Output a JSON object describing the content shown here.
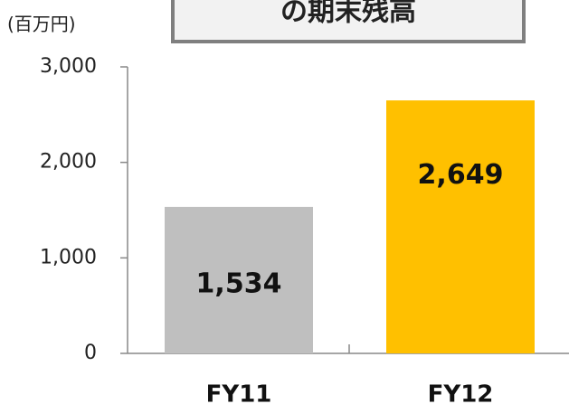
{
  "chart_data": {
    "type": "bar",
    "title": "の期末残高",
    "y_axis_label": "(百万円)",
    "categories": [
      "FY11",
      "FY12"
    ],
    "values": [
      1534,
      2649
    ],
    "value_labels": [
      "1,534",
      "2,649"
    ],
    "colors": [
      "#bfbfbf",
      "#ffc000"
    ],
    "ylim": [
      0,
      3000
    ],
    "yticks": [
      0,
      {
        "value": 1000,
        "label": "1,000"
      },
      {
        "value": 2000,
        "label": "2,000"
      },
      {
        "value": 3000,
        "label": "3,000"
      }
    ],
    "grid": false
  }
}
